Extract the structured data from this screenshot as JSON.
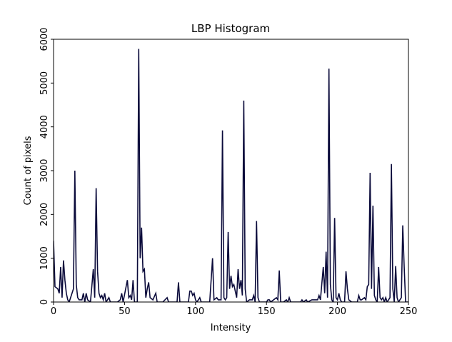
{
  "chart_data": {
    "type": "line",
    "title": "LBP Histogram",
    "x_label": "Intensity",
    "y_label": "Count of pixels",
    "color": "#0b0b3b",
    "x": [
      0,
      1,
      3,
      4,
      5,
      6,
      7,
      8,
      9,
      10,
      11,
      13,
      14,
      15,
      16,
      17,
      18,
      20,
      21,
      22,
      23,
      24,
      26,
      28,
      29,
      30,
      31,
      32,
      33,
      34,
      35,
      36,
      37,
      38,
      39,
      40,
      45,
      47,
      48,
      49,
      52,
      53,
      54,
      55,
      56,
      57,
      59,
      60,
      61,
      62,
      63,
      64,
      65,
      66,
      67,
      68,
      70,
      72,
      73,
      77,
      80,
      81,
      87,
      88,
      89,
      95,
      96,
      97,
      98,
      99,
      100,
      101,
      102,
      103,
      104,
      110,
      112,
      113,
      115,
      116,
      118,
      119,
      120,
      121,
      122,
      123,
      124,
      125,
      126,
      127,
      128,
      129,
      130,
      131,
      132,
      133,
      134,
      135,
      136,
      138,
      140,
      141,
      142,
      143,
      144,
      145,
      150,
      151,
      152,
      153,
      155,
      157,
      158,
      159,
      160,
      162,
      164,
      165,
      166,
      167,
      174,
      175,
      176,
      178,
      179,
      182,
      183,
      186,
      187,
      188,
      190,
      191,
      192,
      193,
      194,
      195,
      196,
      197,
      198,
      199,
      200,
      201,
      202,
      203,
      205,
      206,
      207,
      208,
      210,
      214,
      215,
      216,
      217,
      219,
      220,
      221,
      222,
      223,
      224,
      225,
      226,
      227,
      228,
      229,
      230,
      231,
      232,
      233,
      234,
      235,
      236,
      237,
      238,
      239,
      240,
      241,
      242,
      243,
      245,
      246,
      247,
      248,
      250
    ],
    "values": [
      1400,
      350,
      300,
      200,
      800,
      100,
      950,
      500,
      200,
      50,
      0,
      200,
      300,
      3000,
      400,
      100,
      50,
      50,
      200,
      0,
      200,
      50,
      0,
      750,
      100,
      2600,
      700,
      200,
      100,
      150,
      50,
      200,
      0,
      50,
      100,
      0,
      0,
      50,
      200,
      0,
      500,
      100,
      150,
      50,
      500,
      0,
      0,
      5780,
      1000,
      1700,
      700,
      750,
      100,
      300,
      450,
      100,
      50,
      200,
      0,
      0,
      100,
      0,
      0,
      450,
      0,
      0,
      250,
      250,
      150,
      200,
      50,
      0,
      50,
      100,
      0,
      0,
      1000,
      50,
      100,
      50,
      50,
      3920,
      100,
      50,
      100,
      1600,
      300,
      600,
      350,
      400,
      250,
      100,
      750,
      300,
      500,
      150,
      4600,
      300,
      0,
      50,
      50,
      150,
      0,
      1850,
      100,
      0,
      0,
      50,
      50,
      0,
      50,
      100,
      50,
      720,
      0,
      0,
      50,
      0,
      100,
      0,
      0,
      50,
      0,
      50,
      0,
      50,
      50,
      50,
      150,
      50,
      800,
      200,
      1150,
      100,
      5330,
      400,
      50,
      0,
      1920,
      100,
      50,
      200,
      50,
      0,
      0,
      700,
      300,
      50,
      0,
      0,
      150,
      50,
      50,
      100,
      50,
      350,
      400,
      2950,
      300,
      2200,
      150,
      50,
      0,
      800,
      100,
      50,
      100,
      0,
      100,
      0,
      50,
      100,
      3150,
      300,
      0,
      820,
      100,
      0,
      100,
      1750,
      800,
      0,
      0
    ],
    "xlim": [
      0,
      250
    ],
    "xticks": [
      0,
      50,
      100,
      150,
      200,
      250
    ],
    "ylim": [
      0,
      6000
    ],
    "yticks": [
      0,
      1000,
      2000,
      3000,
      4000,
      5000,
      6000
    ]
  }
}
